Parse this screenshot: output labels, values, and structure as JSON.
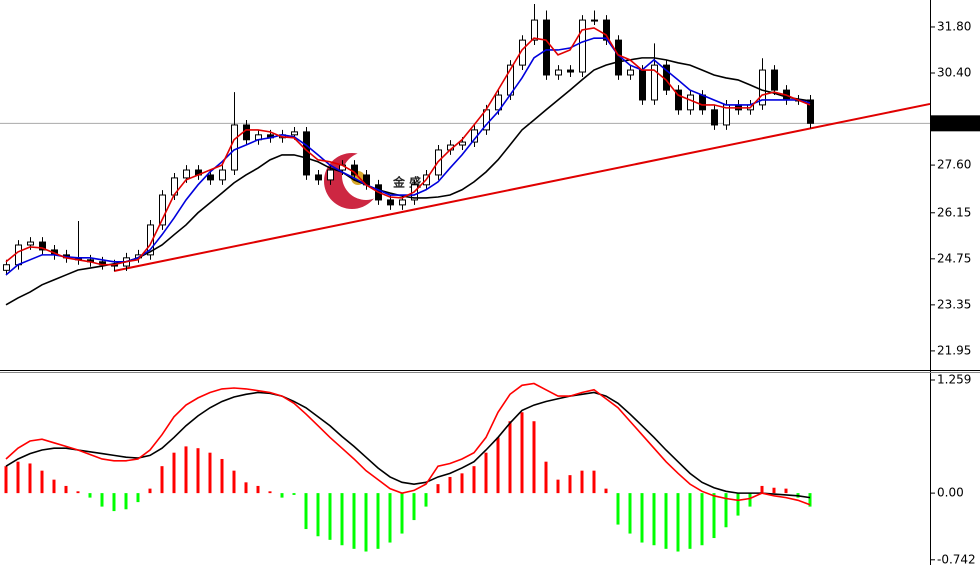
{
  "chart_data": [
    {
      "type": "candlestick",
      "ylim": [
        21.43,
        32.62
      ],
      "yticks": [
        {
          "value": 31.8,
          "label": "31.80"
        },
        {
          "value": 30.4,
          "label": "30.40"
        },
        {
          "value": 27.6,
          "label": "27.60"
        },
        26.15,
        24.75,
        23.35,
        21.95
      ],
      "candles": {
        "open": [
          24.4,
          24.57,
          25.17,
          25.26,
          25.02,
          24.87,
          24.78,
          24.72,
          24.66,
          24.57,
          24.53,
          24.78,
          24.87,
          25.78,
          26.69,
          27.21,
          27.45,
          27.3,
          27.15,
          27.45,
          28.82,
          28.37,
          28.52,
          28.43,
          28.52,
          28.61,
          27.3,
          27.15,
          27.45,
          27.6,
          27.3,
          27.0,
          26.54,
          26.39,
          26.54,
          27.0,
          27.3,
          28.06,
          28.21,
          28.3,
          28.67,
          29.28,
          29.73,
          30.64,
          31.4,
          32.01,
          30.34,
          30.49,
          30.43,
          32.01,
          32.01,
          31.4,
          30.34,
          30.49,
          29.58,
          30.64,
          29.88,
          29.28,
          29.73,
          29.28,
          28.82,
          29.43,
          29.28,
          29.43,
          30.49,
          29.88,
          29.58,
          29.58
        ],
        "high": [
          24.72,
          25.32,
          25.41,
          25.41,
          25.17,
          25.02,
          25.9,
          24.87,
          24.81,
          24.72,
          24.93,
          25.02,
          25.93,
          26.84,
          27.36,
          27.6,
          27.6,
          27.45,
          27.6,
          29.82,
          28.97,
          28.67,
          28.67,
          28.67,
          28.76,
          28.76,
          27.45,
          27.6,
          27.75,
          27.75,
          27.45,
          27.15,
          26.69,
          26.69,
          27.15,
          27.45,
          28.21,
          28.36,
          28.45,
          28.82,
          29.43,
          29.88,
          30.79,
          31.55,
          32.5,
          32.3,
          30.64,
          30.64,
          32.16,
          32.3,
          32.16,
          31.55,
          30.64,
          30.64,
          31.3,
          30.79,
          30.03,
          29.88,
          29.88,
          29.43,
          29.58,
          29.58,
          29.58,
          30.85,
          30.64,
          30.03,
          29.73,
          29.73
        ],
        "low": [
          24.25,
          24.42,
          25.02,
          24.87,
          24.72,
          24.63,
          24.57,
          24.51,
          24.42,
          24.38,
          24.38,
          24.63,
          24.72,
          25.63,
          26.54,
          27.06,
          27.15,
          27.0,
          27.0,
          27.3,
          28.22,
          28.22,
          28.28,
          28.28,
          28.37,
          27.15,
          27.0,
          27.0,
          27.3,
          27.15,
          26.85,
          26.39,
          26.24,
          26.24,
          26.39,
          26.85,
          27.15,
          27.91,
          28.06,
          28.15,
          28.52,
          29.13,
          29.58,
          30.49,
          31.25,
          30.19,
          30.19,
          30.28,
          30.28,
          31.86,
          31.25,
          30.19,
          30.19,
          29.43,
          29.43,
          29.73,
          29.13,
          29.13,
          29.13,
          28.67,
          28.67,
          29.13,
          29.13,
          29.28,
          29.73,
          29.43,
          29.43,
          28.72
        ],
        "close": [
          24.57,
          25.17,
          25.26,
          25.02,
          24.87,
          24.78,
          24.72,
          24.66,
          24.57,
          24.53,
          24.78,
          24.87,
          25.78,
          26.69,
          27.21,
          27.45,
          27.3,
          27.15,
          27.45,
          28.82,
          28.37,
          28.52,
          28.43,
          28.52,
          28.61,
          27.3,
          27.15,
          27.45,
          27.6,
          27.3,
          27.0,
          26.54,
          26.39,
          26.54,
          27.0,
          27.3,
          28.06,
          28.21,
          28.3,
          28.67,
          29.28,
          29.73,
          30.64,
          31.4,
          32.01,
          30.34,
          30.49,
          30.43,
          32.01,
          32.01,
          31.4,
          30.34,
          30.49,
          29.58,
          30.64,
          29.88,
          29.28,
          29.73,
          29.28,
          28.82,
          29.43,
          29.28,
          29.43,
          30.49,
          29.88,
          29.58,
          29.58,
          28.87
        ]
      },
      "lines": [
        {
          "color": "#000000",
          "values": [
            23.35,
            23.56,
            23.74,
            23.96,
            24.11,
            24.26,
            24.41,
            24.47,
            24.53,
            24.6,
            24.66,
            24.78,
            24.96,
            25.17,
            25.48,
            25.78,
            26.15,
            26.45,
            26.75,
            27.06,
            27.3,
            27.51,
            27.76,
            27.91,
            27.91,
            27.82,
            27.7,
            27.51,
            27.39,
            27.15,
            27.0,
            26.85,
            26.75,
            26.66,
            26.6,
            26.6,
            26.63,
            26.69,
            26.85,
            27.09,
            27.39,
            27.76,
            28.21,
            28.67,
            28.97,
            29.28,
            29.58,
            29.88,
            30.19,
            30.49,
            30.64,
            30.74,
            30.8,
            30.86,
            30.86,
            30.8,
            30.71,
            30.64,
            30.49,
            30.34,
            30.25,
            30.19,
            30.04,
            29.88,
            29.79,
            29.67,
            29.61,
            29.55
          ]
        },
        {
          "color": "#0000dd",
          "values": [
            24.26,
            24.57,
            24.72,
            24.87,
            24.87,
            24.81,
            24.78,
            24.78,
            24.72,
            24.66,
            24.66,
            24.78,
            25.02,
            25.48,
            25.99,
            26.54,
            27.0,
            27.39,
            27.7,
            28.06,
            28.21,
            28.37,
            28.43,
            28.52,
            28.46,
            28.21,
            27.91,
            27.6,
            27.39,
            27.21,
            27.0,
            26.85,
            26.69,
            26.69,
            26.69,
            26.85,
            27.09,
            27.51,
            27.91,
            28.37,
            28.82,
            29.22,
            29.73,
            30.25,
            30.86,
            31.1,
            31.1,
            31.16,
            31.34,
            31.46,
            31.46,
            30.95,
            30.64,
            30.49,
            30.8,
            30.49,
            30.19,
            29.88,
            29.73,
            29.58,
            29.43,
            29.43,
            29.43,
            29.58,
            29.58,
            29.58,
            29.58,
            29.49
          ]
        },
        {
          "color": "#e00000",
          "values": [
            24.66,
            24.96,
            25.11,
            25.08,
            24.93,
            24.78,
            24.72,
            24.66,
            24.57,
            24.57,
            24.66,
            24.72,
            25.17,
            25.93,
            26.69,
            27.15,
            27.3,
            27.45,
            27.6,
            28.37,
            28.67,
            28.67,
            28.61,
            28.46,
            28.43,
            28.06,
            27.76,
            27.7,
            27.6,
            27.39,
            27.0,
            26.78,
            26.63,
            26.6,
            26.78,
            27.15,
            27.7,
            28.06,
            28.37,
            28.82,
            29.28,
            29.88,
            30.49,
            31.1,
            31.46,
            31.4,
            30.95,
            31.1,
            31.71,
            31.77,
            31.56,
            30.95,
            30.8,
            30.49,
            30.49,
            30.19,
            29.73,
            29.58,
            29.43,
            29.43,
            29.34,
            29.34,
            29.34,
            29.73,
            29.82,
            29.73,
            29.58,
            29.43
          ]
        }
      ],
      "trendline": {
        "color": "#e00000",
        "x": [
          9,
          77
        ],
        "values": [
          24.38,
          29.46
        ]
      },
      "last_price": {
        "value": 28.87,
        "label": "28.87"
      },
      "watermark": "金 盛"
    },
    {
      "type": "macd",
      "ylim": [
        -0.8,
        1.348
      ],
      "yticks": [
        1.259,
        {
          "value": 0,
          "label": "0.00"
        },
        -0.742
      ],
      "histogram": {
        "up_color": "#ff0000",
        "down_color": "#00ff00",
        "values": [
          0.3,
          0.35,
          0.33,
          0.25,
          0.15,
          0.08,
          0.02,
          -0.05,
          -0.15,
          -0.2,
          -0.18,
          -0.1,
          0.05,
          0.3,
          0.45,
          0.52,
          0.5,
          0.45,
          0.38,
          0.25,
          0.12,
          0.08,
          0.02,
          -0.05,
          -0.02,
          -0.4,
          -0.48,
          -0.52,
          -0.58,
          -0.62,
          -0.65,
          -0.62,
          -0.55,
          -0.45,
          -0.3,
          -0.15,
          0.1,
          0.18,
          0.22,
          0.3,
          0.45,
          0.62,
          0.8,
          0.9,
          0.8,
          0.35,
          0.15,
          0.2,
          0.25,
          0.25,
          0.05,
          -0.35,
          -0.45,
          -0.55,
          -0.58,
          -0.62,
          -0.65,
          -0.62,
          -0.58,
          -0.5,
          -0.38,
          -0.25,
          -0.15,
          0.08,
          0.06,
          0.05,
          -0.05,
          -0.15
        ]
      },
      "lines": [
        {
          "color": "#000000",
          "values": [
            0.3,
            0.38,
            0.44,
            0.48,
            0.5,
            0.5,
            0.48,
            0.46,
            0.44,
            0.42,
            0.4,
            0.39,
            0.42,
            0.5,
            0.62,
            0.75,
            0.86,
            0.95,
            1.02,
            1.07,
            1.1,
            1.12,
            1.11,
            1.08,
            1.02,
            0.95,
            0.85,
            0.75,
            0.63,
            0.52,
            0.4,
            0.28,
            0.18,
            0.12,
            0.1,
            0.12,
            0.18,
            0.22,
            0.28,
            0.35,
            0.48,
            0.62,
            0.78,
            0.92,
            0.98,
            1.02,
            1.05,
            1.08,
            1.1,
            1.12,
            1.08,
            1.0,
            0.88,
            0.75,
            0.62,
            0.48,
            0.35,
            0.22,
            0.12,
            0.06,
            0.02,
            0.0,
            0.0,
            0.0,
            -0.01,
            -0.02,
            -0.03,
            -0.05
          ]
        },
        {
          "color": "#ff0000",
          "values": [
            0.38,
            0.5,
            0.58,
            0.6,
            0.56,
            0.52,
            0.48,
            0.43,
            0.38,
            0.36,
            0.36,
            0.38,
            0.48,
            0.65,
            0.85,
            0.98,
            1.06,
            1.12,
            1.16,
            1.17,
            1.16,
            1.14,
            1.12,
            1.08,
            1.0,
            0.88,
            0.75,
            0.62,
            0.5,
            0.38,
            0.25,
            0.15,
            0.05,
            0.0,
            0.03,
            0.1,
            0.3,
            0.33,
            0.38,
            0.45,
            0.62,
            0.9,
            1.1,
            1.2,
            1.22,
            1.15,
            1.08,
            1.08,
            1.12,
            1.15,
            1.05,
            0.95,
            0.8,
            0.65,
            0.5,
            0.35,
            0.22,
            0.1,
            0.02,
            -0.03,
            -0.06,
            -0.08,
            -0.06,
            0.0,
            -0.03,
            -0.05,
            -0.08,
            -0.13
          ]
        }
      ]
    }
  ]
}
